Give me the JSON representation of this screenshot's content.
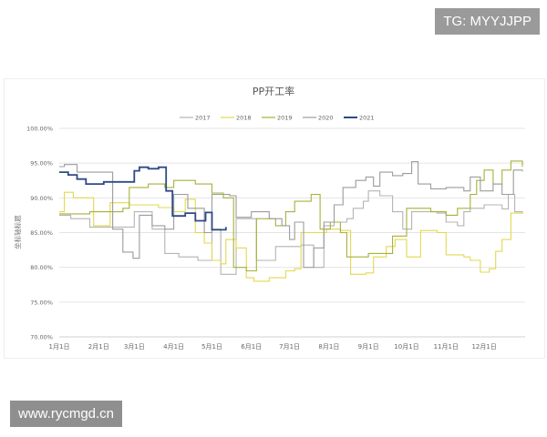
{
  "watermarks": {
    "top": "TG: MYYJJPP",
    "bottom": "www.rycmgd.cn"
  },
  "chart_data": {
    "type": "line",
    "title": "PP开工率",
    "ylabel": "坐标轴标题",
    "xlabel": "",
    "ylim": [
      0.7,
      1.0
    ],
    "yticks": [
      "70.00%",
      "75.00%",
      "80.00%",
      "85.00%",
      "90.00%",
      "95.00%",
      "100.00%"
    ],
    "xticks": [
      "1月1日",
      "2月1日",
      "3月1日",
      "4月1日",
      "5月1日",
      "6月1日",
      "7月1日",
      "8月1日",
      "9月1日",
      "10月1日",
      "11月1日",
      "12月1日"
    ],
    "grid": "horizontal",
    "legend": "top",
    "step": true,
    "series": [
      {
        "name": "2017",
        "color": "#b4b4b4",
        "points": [
          [
            "01-01",
            87.5
          ],
          [
            "01-10",
            87
          ],
          [
            "01-25",
            85.8
          ],
          [
            "02-20",
            85.8
          ],
          [
            "03-01",
            88
          ],
          [
            "03-15",
            85.5
          ],
          [
            "03-25",
            82
          ],
          [
            "04-05",
            81.5
          ],
          [
            "04-20",
            81
          ],
          [
            "05-01",
            85.5
          ],
          [
            "05-08",
            79
          ],
          [
            "05-15",
            79
          ],
          [
            "05-20",
            87
          ],
          [
            "06-05",
            81
          ],
          [
            "06-15",
            81
          ],
          [
            "06-20",
            83
          ],
          [
            "07-10",
            83.2
          ],
          [
            "07-20",
            80
          ],
          [
            "07-28",
            86
          ],
          [
            "08-05",
            86.5
          ],
          [
            "08-15",
            87
          ],
          [
            "08-20",
            88.5
          ],
          [
            "08-28",
            89.5
          ],
          [
            "09-01",
            91
          ],
          [
            "09-10",
            90.3
          ],
          [
            "09-20",
            88
          ],
          [
            "09-28",
            85.5
          ],
          [
            "10-05",
            88
          ],
          [
            "10-25",
            87.8
          ],
          [
            "11-01",
            86.5
          ],
          [
            "11-10",
            86
          ],
          [
            "11-15",
            88
          ],
          [
            "11-20",
            88.5
          ],
          [
            "12-01",
            89
          ],
          [
            "12-15",
            88.4
          ],
          [
            "12-20",
            90.5
          ],
          [
            "12-25",
            88
          ],
          [
            "12-31",
            87.8
          ]
        ]
      },
      {
        "name": "2018",
        "color": "#e3d84f",
        "points": [
          [
            "01-01",
            88
          ],
          [
            "01-05",
            90.8
          ],
          [
            "01-12",
            90
          ],
          [
            "01-25",
            90
          ],
          [
            "01-28",
            86
          ],
          [
            "02-08",
            86
          ],
          [
            "02-10",
            89.3
          ],
          [
            "02-25",
            89
          ],
          [
            "03-20",
            88.6
          ],
          [
            "04-01",
            88
          ],
          [
            "04-10",
            89.8
          ],
          [
            "04-18",
            85
          ],
          [
            "04-25",
            83.5
          ],
          [
            "05-01",
            81
          ],
          [
            "05-08",
            80.5
          ],
          [
            "05-12",
            84
          ],
          [
            "05-20",
            82.8
          ],
          [
            "05-28",
            78.5
          ],
          [
            "06-03",
            78
          ],
          [
            "06-15",
            78.5
          ],
          [
            "06-28",
            79.5
          ],
          [
            "07-05",
            79.8
          ],
          [
            "07-10",
            85
          ],
          [
            "07-30",
            85.5
          ],
          [
            "08-10",
            85.3
          ],
          [
            "08-18",
            79
          ],
          [
            "08-30",
            79.2
          ],
          [
            "09-05",
            81.5
          ],
          [
            "09-15",
            83
          ],
          [
            "09-22",
            84
          ],
          [
            "10-01",
            81.5
          ],
          [
            "10-10",
            81.5
          ],
          [
            "10-12",
            85.3
          ],
          [
            "10-25",
            85
          ],
          [
            "11-01",
            81.8
          ],
          [
            "11-15",
            81.5
          ],
          [
            "11-20",
            81
          ],
          [
            "11-28",
            79.3
          ],
          [
            "12-05",
            79.8
          ],
          [
            "12-10",
            82.3
          ],
          [
            "12-15",
            84
          ],
          [
            "12-22",
            87.8
          ],
          [
            "12-31",
            87.7
          ]
        ]
      },
      {
        "name": "2019",
        "color": "#a7b13a",
        "points": [
          [
            "01-01",
            87.7
          ],
          [
            "01-25",
            88
          ],
          [
            "02-20",
            88.5
          ],
          [
            "02-25",
            91.5
          ],
          [
            "03-12",
            92
          ],
          [
            "03-25",
            91.5
          ],
          [
            "04-01",
            92.5
          ],
          [
            "04-18",
            92
          ],
          [
            "05-01",
            90.7
          ],
          [
            "05-10",
            90
          ],
          [
            "05-18",
            80
          ],
          [
            "05-28",
            79.5
          ],
          [
            "06-05",
            87
          ],
          [
            "06-20",
            86
          ],
          [
            "06-28",
            88
          ],
          [
            "07-05",
            89.5
          ],
          [
            "07-18",
            90.5
          ],
          [
            "07-25",
            85.5
          ],
          [
            "08-02",
            86.5
          ],
          [
            "08-10",
            85
          ],
          [
            "08-15",
            81.5
          ],
          [
            "09-01",
            82
          ],
          [
            "09-20",
            84.5
          ],
          [
            "10-01",
            88.5
          ],
          [
            "10-20",
            88
          ],
          [
            "11-01",
            87.5
          ],
          [
            "11-10",
            88.5
          ],
          [
            "11-20",
            90.5
          ],
          [
            "11-25",
            92.5
          ],
          [
            "12-01",
            94
          ],
          [
            "12-08",
            92
          ],
          [
            "12-15",
            94
          ],
          [
            "12-22",
            95.3
          ],
          [
            "12-31",
            94.5
          ]
        ]
      },
      {
        "name": "2020",
        "color": "#9c9c9c",
        "points": [
          [
            "01-01",
            94.5
          ],
          [
            "01-05",
            94.8
          ],
          [
            "01-15",
            93.7
          ],
          [
            "02-10",
            93.7
          ],
          [
            "02-12",
            85.5
          ],
          [
            "02-20",
            82.2
          ],
          [
            "02-28",
            81.3
          ],
          [
            "03-05",
            87.5
          ],
          [
            "03-15",
            86
          ],
          [
            "03-25",
            85.5
          ],
          [
            "04-01",
            90.5
          ],
          [
            "04-12",
            88.5
          ],
          [
            "04-25",
            85
          ],
          [
            "05-01",
            90.5
          ],
          [
            "05-15",
            90.3
          ],
          [
            "05-20",
            87.2
          ],
          [
            "06-01",
            88
          ],
          [
            "06-15",
            87
          ],
          [
            "06-25",
            86
          ],
          [
            "07-01",
            84
          ],
          [
            "07-05",
            86.5
          ],
          [
            "07-12",
            80
          ],
          [
            "07-20",
            82.8
          ],
          [
            "07-28",
            86.5
          ],
          [
            "08-05",
            89
          ],
          [
            "08-12",
            91.5
          ],
          [
            "08-22",
            92.5
          ],
          [
            "08-30",
            93
          ],
          [
            "09-05",
            91.7
          ],
          [
            "09-10",
            93.7
          ],
          [
            "09-20",
            93.2
          ],
          [
            "09-28",
            93.5
          ],
          [
            "10-05",
            95.2
          ],
          [
            "10-10",
            92
          ],
          [
            "10-20",
            91.3
          ],
          [
            "11-01",
            91.5
          ],
          [
            "11-15",
            91
          ],
          [
            "11-20",
            93
          ],
          [
            "11-28",
            91
          ],
          [
            "12-08",
            92
          ],
          [
            "12-15",
            90.5
          ],
          [
            "12-24",
            94
          ],
          [
            "12-31",
            93.8
          ]
        ]
      },
      {
        "name": "2021",
        "color": "#2e4a86",
        "points": [
          [
            "01-01",
            93.7
          ],
          [
            "01-08",
            93.3
          ],
          [
            "01-15",
            92.7
          ],
          [
            "01-22",
            92
          ],
          [
            "02-05",
            92.3
          ],
          [
            "02-28",
            92.3
          ],
          [
            "03-01",
            93.9
          ],
          [
            "03-05",
            94.4
          ],
          [
            "03-12",
            94.2
          ],
          [
            "03-20",
            94.4
          ],
          [
            "03-26",
            91
          ],
          [
            "03-31",
            87.4
          ],
          [
            "04-10",
            87.8
          ],
          [
            "04-18",
            86.7
          ],
          [
            "04-26",
            87.9
          ],
          [
            "05-01",
            85.4
          ],
          [
            "05-12",
            85.8
          ]
        ]
      }
    ]
  }
}
